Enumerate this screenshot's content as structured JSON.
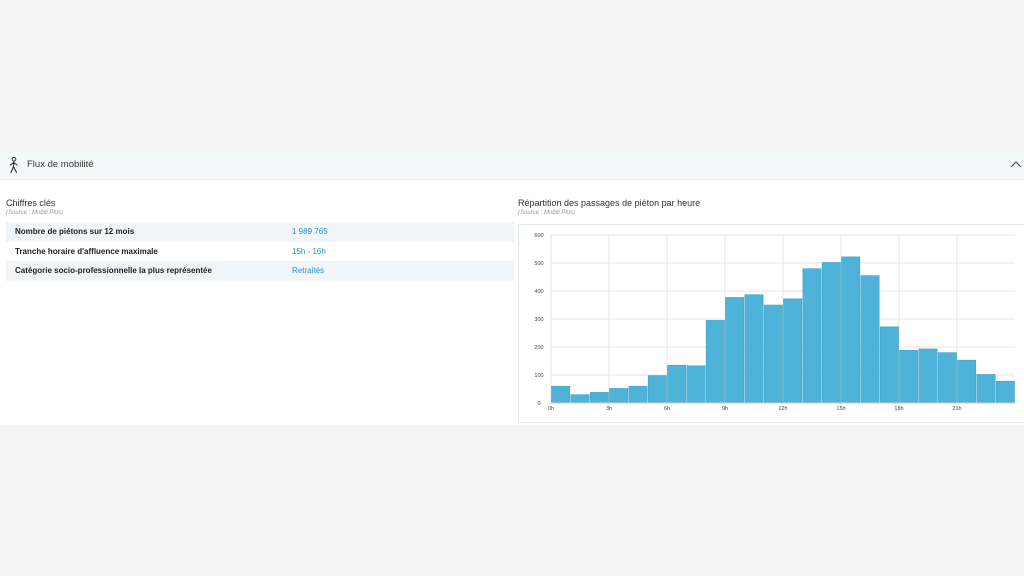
{
  "section": {
    "title": "Flux de mobilité",
    "icon": "pedestrian-icon",
    "collapse_icon": "chevron-up-icon"
  },
  "key_figures": {
    "title": "Chiffres clés",
    "source": "(Source : Mobili Plus)",
    "rows": [
      {
        "label": "Nombre de piétons sur 12 mois",
        "value": "1 989 765"
      },
      {
        "label": "Tranche horaire d'affluence maximale",
        "value": "15h - 16h"
      },
      {
        "label": "Catégorie socio-professionnelle la plus représentée",
        "value": "Retraités"
      }
    ]
  },
  "chart_section": {
    "title": "Répartition des passages de piéton par heure",
    "source": "(Source : Mobili Plus)"
  },
  "colors": {
    "bar": "#4fb3d9",
    "bar_stroke": "#3a9cc4",
    "link": "#2b8fc6"
  },
  "chart_data": {
    "type": "bar",
    "title": "Répartition des passages de piéton par heure",
    "categories": [
      "0h",
      "1h",
      "2h",
      "3h",
      "4h",
      "5h",
      "6h",
      "7h",
      "8h",
      "9h",
      "10h",
      "11h",
      "12h",
      "13h",
      "14h",
      "15h",
      "16h",
      "17h",
      "18h",
      "19h",
      "20h",
      "21h",
      "22h",
      "23h"
    ],
    "values": [
      60,
      30,
      38,
      52,
      60,
      98,
      135,
      133,
      295,
      377,
      387,
      350,
      372,
      480,
      502,
      522,
      455,
      272,
      188,
      193,
      180,
      153,
      102,
      78
    ],
    "x_tick_labels": [
      "0h",
      "3h",
      "6h",
      "9h",
      "12h",
      "15h",
      "18h",
      "21h"
    ],
    "y_ticks": [
      0,
      100,
      200,
      300,
      400,
      500,
      600
    ],
    "ylim": [
      0,
      600
    ],
    "grid": true,
    "xlabel": "",
    "ylabel": ""
  }
}
